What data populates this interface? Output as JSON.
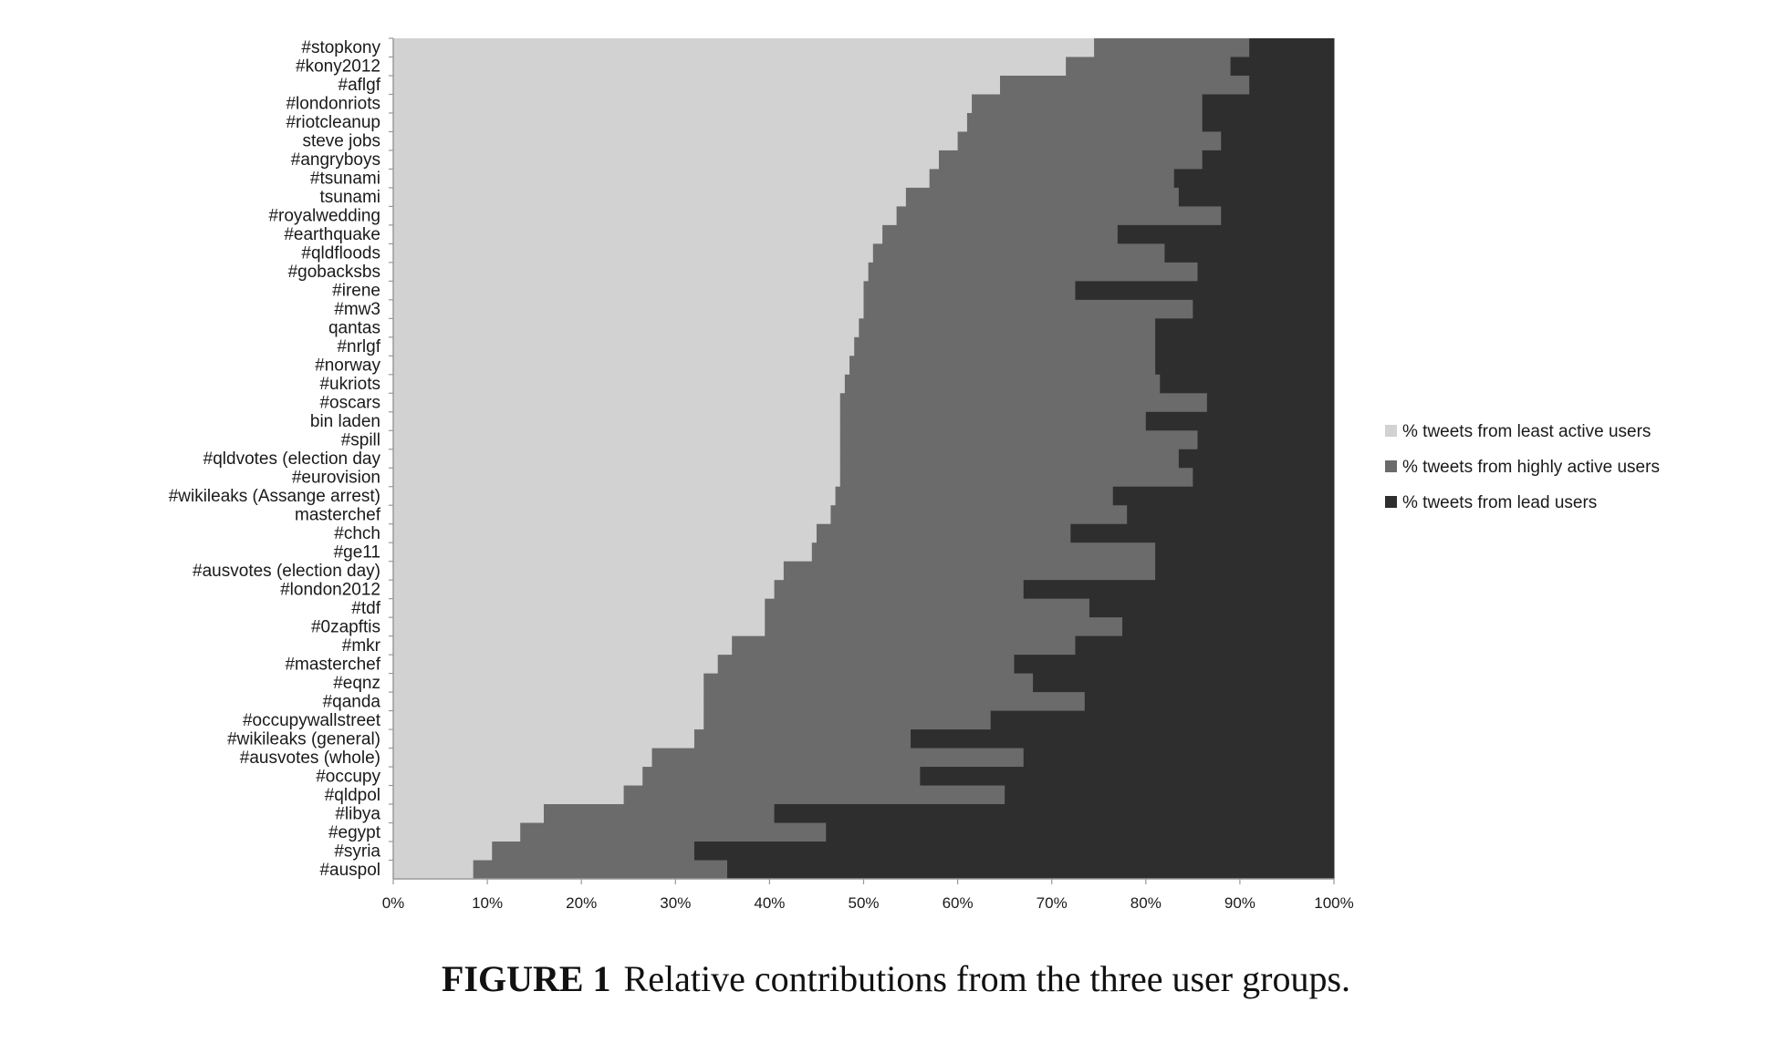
{
  "caption": {
    "figure_label": "FIGURE 1",
    "text": "Relative contributions from the three user groups."
  },
  "colors": {
    "least": "#d2d2d2",
    "highly": "#6b6b6b",
    "lead": "#2e2e2e",
    "axis": "#999999"
  },
  "chart_data": {
    "type": "bar",
    "orientation": "horizontal",
    "stacked": true,
    "percent_stacked": true,
    "title": "",
    "xlabel": "",
    "ylabel": "",
    "xlim": [
      0,
      100
    ],
    "x_ticks": [
      "0%",
      "10%",
      "20%",
      "30%",
      "40%",
      "50%",
      "60%",
      "70%",
      "80%",
      "90%",
      "100%"
    ],
    "legend_position": "right",
    "grid": false,
    "categories": [
      "#stopkony",
      "#kony2012",
      "#aflgf",
      "#londonriots",
      "#riotcleanup",
      "steve jobs",
      "#angryboys",
      "#tsunami",
      "tsunami",
      "#royalwedding",
      "#earthquake",
      "#qldfloods",
      "#gobacksbs",
      "#irene",
      "#mw3",
      "qantas",
      "#nrlgf",
      "#norway",
      "#ukriots",
      "#oscars",
      "bin laden",
      "#spill",
      "#qldvotes (election day",
      "#eurovision",
      "#wikileaks (Assange arrest)",
      "masterchef",
      "#chch",
      "#ge11",
      "#ausvotes (election day)",
      "#london2012",
      "#tdf",
      "#0zapftis",
      "#mkr",
      "#masterchef",
      "#eqnz",
      "#qanda",
      "#occupywallstreet",
      "#wikileaks (general)",
      "#ausvotes (whole)",
      "#occupy",
      "#qldpol",
      "#libya",
      "#egypt",
      "#syria",
      "#auspol"
    ],
    "series": [
      {
        "name": "% tweets from least active users",
        "values": [
          74.5,
          71.5,
          64.5,
          61.5,
          61,
          60,
          58,
          57,
          54.5,
          53.5,
          52,
          51,
          50.5,
          50,
          50,
          49.5,
          49,
          48.5,
          48,
          47.5,
          47.5,
          47.5,
          47.5,
          47.5,
          47,
          46.5,
          45,
          44.5,
          41.5,
          40.5,
          39.5,
          39.5,
          36,
          34.5,
          33,
          33,
          33,
          32,
          27.5,
          26.5,
          24.5,
          16,
          13.5,
          10.5,
          8.5
        ]
      },
      {
        "name": "% tweets from highly active users",
        "values": [
          16.5,
          17.5,
          26.5,
          24.5,
          25,
          28,
          28,
          26,
          29,
          34.5,
          25,
          31,
          35,
          22.5,
          35,
          31.5,
          32,
          32.5,
          33.5,
          39,
          32.5,
          38,
          36,
          37.5,
          29.5,
          31.5,
          27,
          36.5,
          39.5,
          26.5,
          34.5,
          38,
          36.5,
          31.5,
          35,
          40.5,
          30.5,
          23,
          39.5,
          29.5,
          40.5,
          24.5,
          32.5,
          21.5,
          27
        ]
      },
      {
        "name": "% tweets from lead users",
        "values": [
          9,
          11,
          9,
          14,
          14,
          12,
          14,
          17,
          16.5,
          12,
          23,
          18,
          14.5,
          27.5,
          15,
          19,
          19,
          19,
          18.5,
          13.5,
          20,
          14.5,
          16.5,
          15,
          23.5,
          22,
          28,
          19,
          19,
          33,
          26,
          22.5,
          27.5,
          34,
          32,
          26.5,
          36.5,
          45,
          33,
          44,
          35,
          59.5,
          54,
          68,
          64.5
        ]
      }
    ]
  }
}
